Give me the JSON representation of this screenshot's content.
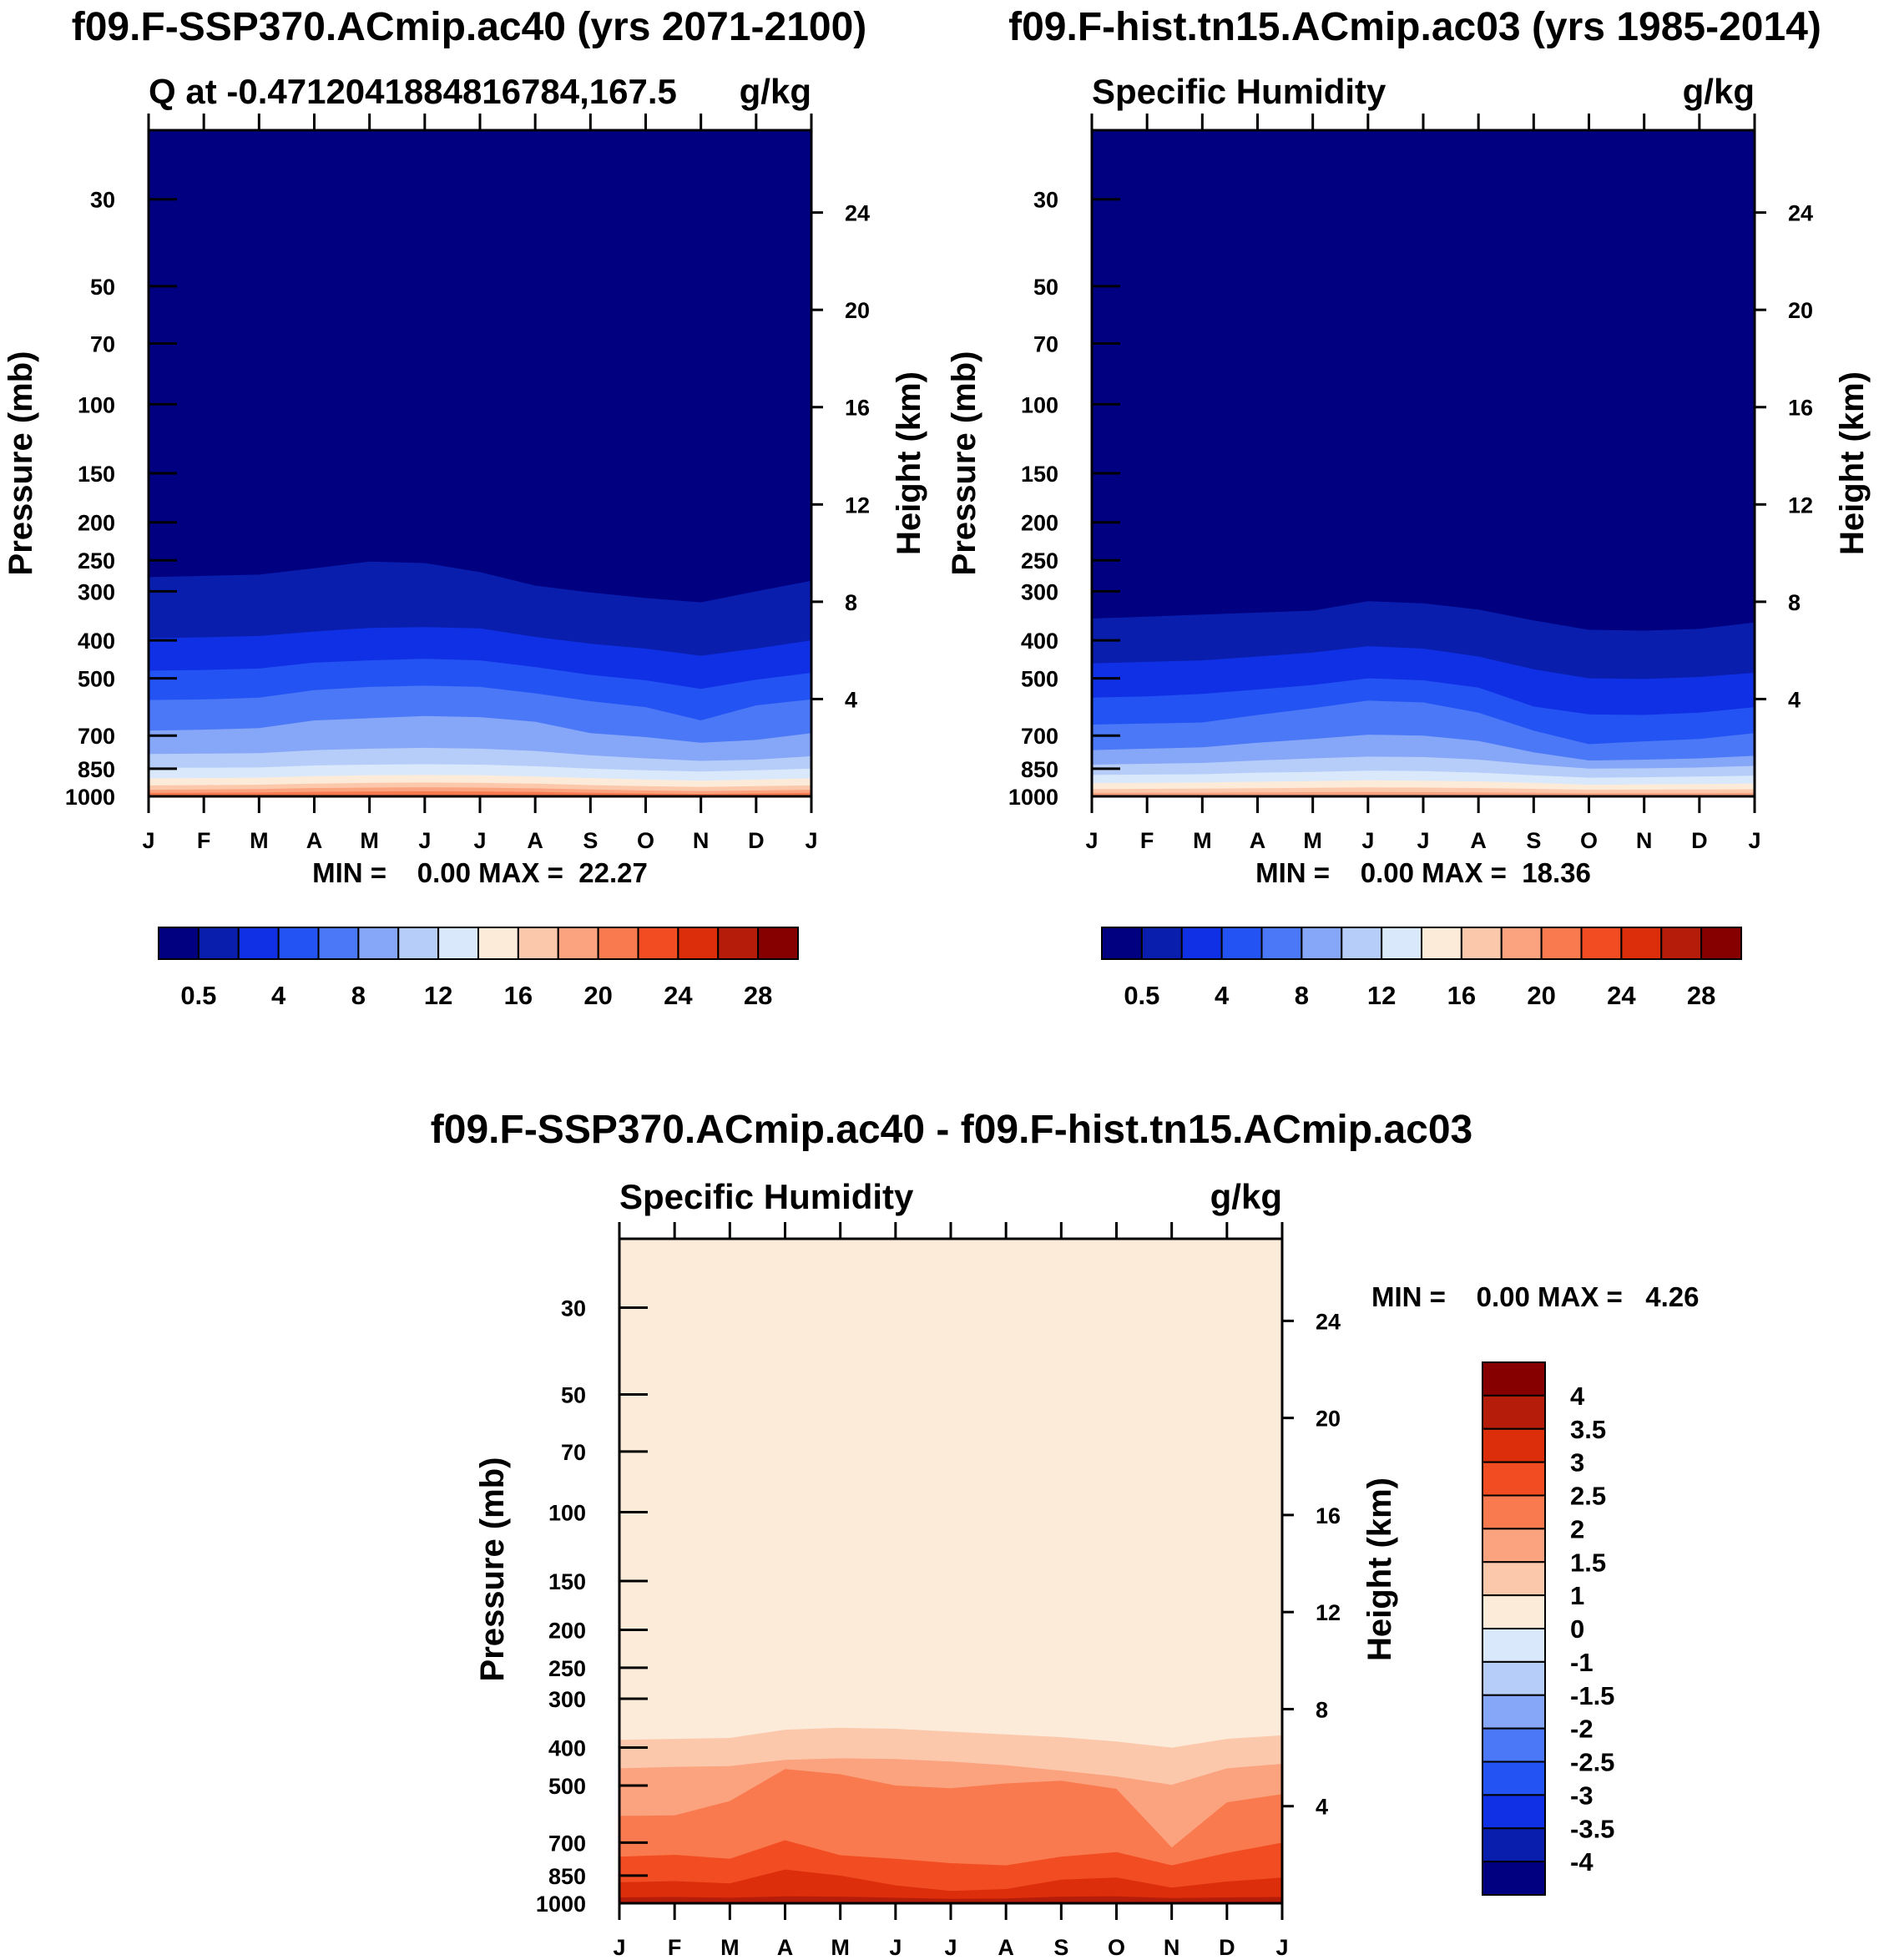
{
  "colors": {
    "abs_levels": [
      "#000080",
      "#0a1eae",
      "#1030e6",
      "#2453f3",
      "#4a78f6",
      "#86a6f7",
      "#b6cdf9",
      "#d9e9fb",
      "#fdebd9",
      "#fcc8ac",
      "#fba27e",
      "#f87a4e",
      "#f24c22",
      "#dc2e0b",
      "#b51d0a",
      "#860000"
    ],
    "diff_levels": [
      "#000080",
      "#0a1eae",
      "#1030e6",
      "#2453f3",
      "#4a78f6",
      "#86a6f7",
      "#b6cdf9",
      "#d9e9fb",
      "#fdebd9",
      "#fcc8ac",
      "#fba27e",
      "#f87a4e",
      "#f24c22",
      "#dc2e0b",
      "#b51d0a",
      "#860000"
    ]
  },
  "chart_data": [
    {
      "type": "contour",
      "id": "panel_a",
      "title": "f09.F-SSP370.ACmip.ac40 (yrs 2071-2100)",
      "subtitle_left": "Q at -0.4712041884816784,167.5",
      "subtitle_right": "g/kg",
      "ylabel": "Pressure (mb)",
      "y2label": "Height (km)",
      "months": [
        "J",
        "F",
        "M",
        "A",
        "M",
        "J",
        "J",
        "A",
        "S",
        "O",
        "N",
        "D",
        "J"
      ],
      "pressure_ticks": [
        30,
        50,
        70,
        100,
        150,
        200,
        250,
        300,
        400,
        500,
        700,
        850,
        1000
      ],
      "ylim_mb": [
        20,
        1000
      ],
      "height_ticks_km": [
        24,
        20,
        16,
        12,
        8,
        4
      ],
      "min_max_text": "MIN =    0.00 MAX =  22.27",
      "min": 0.0,
      "max": 22.27,
      "colorbar_labels": [
        "0.5",
        "4",
        "8",
        "12",
        "16",
        "20",
        "24",
        "28"
      ],
      "contour_boundaries_mb": [
        [
          276,
          274,
          272,
          262,
          252,
          254,
          268,
          290,
          302,
          312,
          320,
          300,
          282
        ],
        [
          395,
          393,
          390,
          380,
          372,
          370,
          373,
          392,
          408,
          420,
          438,
          420,
          400
        ],
        [
          478,
          476,
          472,
          456,
          450,
          446,
          450,
          468,
          490,
          506,
          532,
          504,
          484
        ],
        [
          568,
          566,
          560,
          536,
          526,
          522,
          526,
          546,
          572,
          592,
          640,
          586,
          566
        ],
        [
          680,
          676,
          670,
          640,
          632,
          624,
          628,
          645,
          690,
          706,
          730,
          718,
          690
        ],
        [
          780,
          778,
          776,
          762,
          756,
          752,
          756,
          766,
          786,
          800,
          812,
          806,
          790
        ],
        [
          846,
          845,
          844,
          834,
          830,
          828,
          830,
          838,
          850,
          858,
          864,
          858,
          850
        ],
        [
          900,
          898,
          896,
          888,
          884,
          882,
          884,
          890,
          898,
          906,
          912,
          906,
          900
        ],
        [
          938,
          936,
          934,
          928,
          924,
          922,
          924,
          928,
          936,
          942,
          946,
          942,
          938
        ],
        [
          962,
          960,
          958,
          952,
          950,
          948,
          950,
          954,
          960,
          966,
          970,
          966,
          962
        ],
        [
          980,
          979,
          978,
          974,
          972,
          971,
          972,
          975,
          979,
          983,
          986,
          983,
          980
        ]
      ]
    },
    {
      "type": "contour",
      "id": "panel_b",
      "title": "f09.F-hist.tn15.ACmip.ac03 (yrs 1985-2014)",
      "subtitle_left": "Specific Humidity",
      "subtitle_right": "g/kg",
      "ylabel": "Pressure (mb)",
      "y2label": "Height (km)",
      "months": [
        "J",
        "F",
        "M",
        "A",
        "M",
        "J",
        "J",
        "A",
        "S",
        "O",
        "N",
        "D",
        "J"
      ],
      "pressure_ticks": [
        30,
        50,
        70,
        100,
        150,
        200,
        250,
        300,
        400,
        500,
        700,
        850,
        1000
      ],
      "ylim_mb": [
        20,
        1000
      ],
      "height_ticks_km": [
        24,
        20,
        16,
        12,
        8,
        4
      ],
      "min_max_text": "MIN =    0.00 MAX =  18.36",
      "min": 0.0,
      "max": 18.36,
      "colorbar_labels": [
        "0.5",
        "4",
        "8",
        "12",
        "16",
        "20",
        "24",
        "28"
      ],
      "contour_boundaries_mb": [
        [
          352,
          348,
          344,
          340,
          336,
          318,
          322,
          334,
          356,
          376,
          378,
          374,
          360
        ],
        [
          458,
          454,
          450,
          440,
          430,
          414,
          420,
          440,
          474,
          500,
          502,
          496,
          484
        ],
        [
          560,
          556,
          548,
          534,
          520,
          500,
          506,
          528,
          590,
          618,
          620,
          612,
          592
        ],
        [
          656,
          652,
          648,
          620,
          596,
          570,
          576,
          612,
          680,
          736,
          724,
          714,
          690
        ],
        [
          762,
          756,
          750,
          730,
          714,
          696,
          700,
          722,
          772,
          810,
          806,
          800,
          788
        ],
        [
          830,
          826,
          822,
          810,
          800,
          792,
          794,
          806,
          830,
          850,
          848,
          844,
          836
        ],
        [
          882,
          880,
          878,
          870,
          866,
          860,
          862,
          870,
          884,
          896,
          894,
          890,
          886
        ],
        [
          926,
          924,
          922,
          918,
          914,
          910,
          912,
          916,
          924,
          934,
          932,
          930,
          928
        ],
        [
          958,
          957,
          956,
          953,
          951,
          949,
          950,
          952,
          957,
          962,
          961,
          960,
          959
        ],
        [
          980,
          979,
          979,
          977,
          976,
          975,
          976,
          977,
          979,
          982,
          981,
          981,
          980
        ]
      ]
    },
    {
      "type": "contour",
      "id": "panel_diff",
      "title": "f09.F-SSP370.ACmip.ac40 - f09.F-hist.tn15.ACmip.ac03",
      "subtitle_left": "Specific Humidity",
      "subtitle_right": "g/kg",
      "ylabel": "Pressure (mb)",
      "y2label": "Height (km)",
      "months": [
        "J",
        "F",
        "M",
        "A",
        "M",
        "J",
        "J",
        "A",
        "S",
        "O",
        "N",
        "D",
        "J"
      ],
      "pressure_ticks": [
        30,
        50,
        70,
        100,
        150,
        200,
        250,
        300,
        400,
        500,
        700,
        850,
        1000
      ],
      "ylim_mb": [
        20,
        1000
      ],
      "height_ticks_km": [
        24,
        20,
        16,
        12,
        8,
        4
      ],
      "min_max_text": "MIN =    0.00 MAX =   4.26",
      "min": 0.0,
      "max": 4.26,
      "colorbar_labels": [
        "4",
        "3.5",
        "3",
        "2.5",
        "2",
        "1.5",
        "1",
        "0",
        "-1",
        "-1.5",
        "-2",
        "-2.5",
        "-3",
        "-3.5",
        "-4"
      ],
      "contour_boundaries_mb": [
        [
          382,
          380,
          378,
          360,
          356,
          358,
          364,
          370,
          376,
          386,
          400,
          380,
          372
        ],
        [
          452,
          448,
          446,
          430,
          426,
          428,
          434,
          444,
          458,
          474,
          498,
          452,
          440
        ],
        [
          598,
          596,
          548,
          454,
          468,
          500,
          508,
          494,
          486,
          510,
          720,
          552,
          526
        ],
        [
          760,
          752,
          770,
          690,
          754,
          770,
          790,
          800,
          760,
          740,
          800,
          744,
          700
        ],
        [
          884,
          878,
          890,
          820,
          850,
          900,
          930,
          920,
          870,
          860,
          912,
          880,
          860
        ],
        [
          966,
          964,
          968,
          960,
          962,
          968,
          975,
          972,
          962,
          960,
          970,
          966,
          964
        ]
      ]
    }
  ]
}
